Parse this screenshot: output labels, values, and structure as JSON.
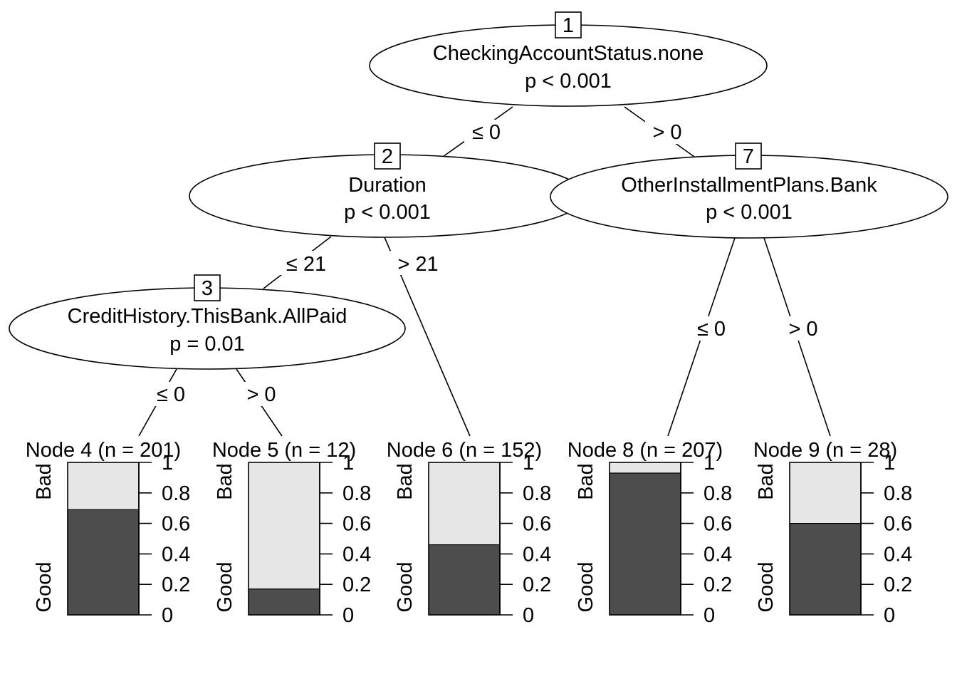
{
  "tree": {
    "inner_nodes": [
      {
        "id": "1",
        "variable": "CheckingAccountStatus.none",
        "pvalue": "p < 0.001"
      },
      {
        "id": "2",
        "variable": "Duration",
        "pvalue": "p < 0.001"
      },
      {
        "id": "3",
        "variable": "CreditHistory.ThisBank.AllPaid",
        "pvalue": "p = 0.01"
      },
      {
        "id": "7",
        "variable": "OtherInstallmentPlans.Bank",
        "pvalue": "p < 0.001"
      }
    ],
    "edges": [
      {
        "from": "1",
        "to": "2",
        "label": "≤ 0"
      },
      {
        "from": "1",
        "to": "7",
        "label": "> 0"
      },
      {
        "from": "2",
        "to": "3",
        "label": "≤ 21"
      },
      {
        "from": "2",
        "to": "6",
        "label": "> 21"
      },
      {
        "from": "3",
        "to": "4",
        "label": "≤ 0"
      },
      {
        "from": "3",
        "to": "5",
        "label": "> 0"
      },
      {
        "from": "7",
        "to": "8",
        "label": "≤ 0"
      },
      {
        "from": "7",
        "to": "9",
        "label": "> 0"
      }
    ],
    "terminal_nodes": [
      {
        "id": "4",
        "title": "Node 4 (n = 201)",
        "good": 0.69
      },
      {
        "id": "5",
        "title": "Node 5 (n = 12)",
        "good": 0.17
      },
      {
        "id": "6",
        "title": "Node 6 (n = 152)",
        "good": 0.46
      },
      {
        "id": "8",
        "title": "Node 8 (n = 207)",
        "good": 0.93
      },
      {
        "id": "9",
        "title": "Node 9 (n = 28)",
        "good": 0.6
      }
    ],
    "class_labels": {
      "top": "Bad",
      "bottom": "Good"
    },
    "axis_ticks": [
      "0",
      "0.2",
      "0.4",
      "0.6",
      "0.8",
      "1"
    ],
    "colors": {
      "good": "#4d4d4d",
      "bad": "#e6e6e6"
    }
  }
}
